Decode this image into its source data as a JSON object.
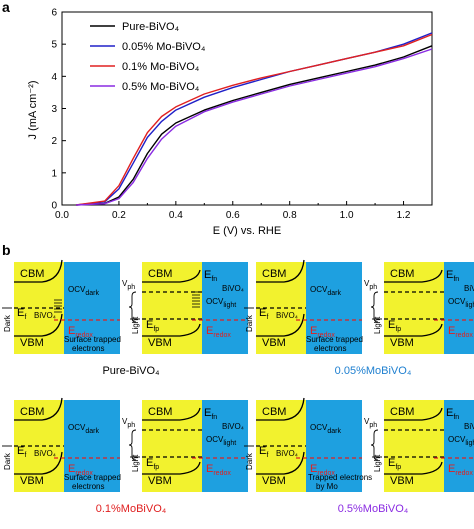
{
  "panel_a_label": "a",
  "panel_b_label": "b",
  "chart_data": {
    "type": "line",
    "xlabel": "E (V) vs. RHE",
    "ylabel": "J (mA cm⁻²)",
    "xlim": [
      0,
      1.3
    ],
    "ylim": [
      0,
      6
    ],
    "xticks": [
      "0.0",
      "0.1",
      "0.2",
      "0.3",
      "0.4",
      "0.5",
      "0.6",
      "0.7",
      "0.8",
      "0.9",
      "1.0",
      "1.1",
      "1.2"
    ],
    "xtick_labels_shown": [
      "0.0",
      "0.2",
      "0.4",
      "0.6",
      "0.8",
      "1.0",
      "1.2"
    ],
    "yticks": [
      0,
      1,
      2,
      3,
      4,
      5,
      6
    ],
    "legend_position": "top-left",
    "series": [
      {
        "name": "Pure-BiVO₄",
        "color": "#000000",
        "x": [
          0.05,
          0.15,
          0.2,
          0.25,
          0.3,
          0.35,
          0.4,
          0.5,
          0.6,
          0.7,
          0.8,
          0.9,
          1.0,
          1.1,
          1.2,
          1.3
        ],
        "y": [
          0.0,
          0.05,
          0.25,
          0.8,
          1.6,
          2.2,
          2.55,
          2.95,
          3.25,
          3.5,
          3.75,
          3.95,
          4.15,
          4.35,
          4.6,
          4.95
        ]
      },
      {
        "name": "0.05% Mo-BiVO₄",
        "color": "#2020c8",
        "x": [
          0.05,
          0.15,
          0.2,
          0.25,
          0.3,
          0.35,
          0.4,
          0.5,
          0.6,
          0.7,
          0.8,
          0.9,
          1.0,
          1.1,
          1.2,
          1.3
        ],
        "y": [
          0.0,
          0.1,
          0.5,
          1.3,
          2.1,
          2.6,
          2.95,
          3.35,
          3.65,
          3.9,
          4.15,
          4.35,
          4.55,
          4.75,
          5.0,
          5.35
        ]
      },
      {
        "name": "0.1% Mo-BiVO₄",
        "color": "#e02020",
        "x": [
          0.05,
          0.15,
          0.2,
          0.25,
          0.3,
          0.35,
          0.4,
          0.5,
          0.6,
          0.7,
          0.8,
          0.9,
          1.0,
          1.1,
          1.2,
          1.3
        ],
        "y": [
          0.0,
          0.12,
          0.6,
          1.45,
          2.25,
          2.75,
          3.05,
          3.45,
          3.72,
          3.95,
          4.15,
          4.35,
          4.55,
          4.75,
          4.95,
          5.3
        ]
      },
      {
        "name": "0.5% Mo-BiVO₄",
        "color": "#8a2be2",
        "x": [
          0.05,
          0.15,
          0.2,
          0.25,
          0.3,
          0.35,
          0.4,
          0.5,
          0.6,
          0.7,
          0.8,
          0.9,
          1.0,
          1.1,
          1.2,
          1.3
        ],
        "y": [
          0.0,
          0.04,
          0.2,
          0.7,
          1.45,
          2.05,
          2.45,
          2.9,
          3.2,
          3.45,
          3.7,
          3.9,
          4.1,
          4.3,
          4.55,
          4.85
        ]
      }
    ]
  },
  "diagrams": {
    "captions": [
      "Pure-BiVO₄",
      "0.05%MoBiVO₄",
      "0.1%MoBiVO₄",
      "0.5%MoBiVO₄"
    ],
    "caption_colors": [
      "#000000",
      "#2080d0",
      "#e02020",
      "#8a2be2"
    ],
    "colors": {
      "semiconductor": "#f2f22e",
      "electrolyte": "#1ea0e0",
      "redox": "#e02020"
    },
    "labels": {
      "cbm": "CBM",
      "vbm": "VBM",
      "dark": "Dark",
      "light": "Light",
      "ef": "E",
      "ef_sub": "f",
      "bivo4": "BiVO",
      "bivo4_sub": "4",
      "efp": "E",
      "efp_sub": "fp",
      "efn": "E",
      "efn_sub": "fn",
      "eredox": "E",
      "eredox_sub": "redox",
      "ocv": "OCV",
      "ocv_dark_sub": "dark",
      "ocv_light_sub": "light",
      "vph": "V",
      "vph_sub": "ph",
      "surface_trapped": "Surface trapped",
      "electrons": "electrons",
      "ocv_gap": "gap",
      "trapped_by_mo_1": "Trapped electrons",
      "trapped_by_mo_2": "by Mo"
    }
  }
}
